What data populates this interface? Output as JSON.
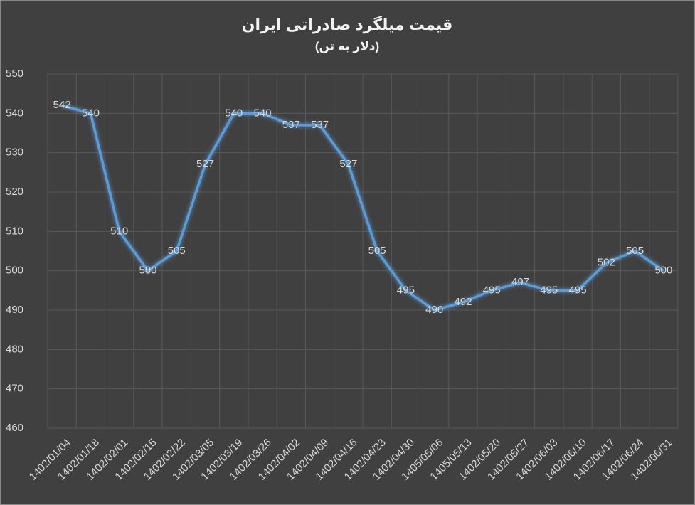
{
  "chart_data": {
    "type": "line",
    "title": "قیمت میلگرد صادراتی ایران",
    "subtitle": "(دلار به تن)",
    "categories": [
      "1402/01/04",
      "1402/01/18",
      "1402/02/01",
      "1402/02/15",
      "1402/02/22",
      "1402/03/05",
      "1402/03/19",
      "1402/03/26",
      "1402/04/02",
      "1402/04/09",
      "1402/04/16",
      "1402/04/23",
      "1402/04/30",
      "1405/05/06",
      "1405/05/13",
      "1402/05/20",
      "1402/05/27",
      "1402/06/03",
      "1402/06/10",
      "1402/06/17",
      "1402/06/24",
      "1402/06/31"
    ],
    "series": [
      {
        "color": "#5b9bd5",
        "values": [
          542,
          540,
          510,
          500,
          505,
          527,
          540,
          540,
          537,
          537,
          527,
          505,
          495,
          490,
          492,
          495,
          497,
          495,
          495,
          502,
          505,
          500
        ]
      }
    ],
    "ylim": [
      460,
      550
    ],
    "yticks": [
      460,
      470,
      480,
      490,
      500,
      510,
      520,
      530,
      540,
      550
    ],
    "grid": true
  }
}
